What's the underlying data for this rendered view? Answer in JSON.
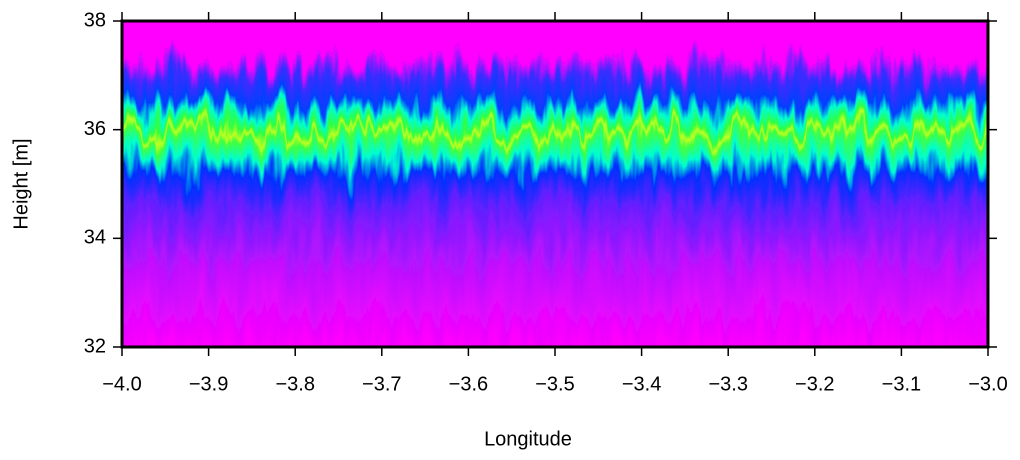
{
  "chart_data": {
    "type": "heatmap",
    "xlabel": "Longitude",
    "ylabel": "Height [m]",
    "xlim": [
      -4.0,
      -3.0
    ],
    "xticks": [
      {
        "value": -4.0,
        "label": "−4.0"
      },
      {
        "value": -3.9,
        "label": "−3.9"
      },
      {
        "value": -3.8,
        "label": "−3.8"
      },
      {
        "value": -3.7,
        "label": "−3.7"
      },
      {
        "value": -3.6,
        "label": "−3.6"
      },
      {
        "value": -3.5,
        "label": "−3.5"
      },
      {
        "value": -3.4,
        "label": "−3.4"
      },
      {
        "value": -3.3,
        "label": "−3.3"
      },
      {
        "value": -3.2,
        "label": "−3.2"
      },
      {
        "value": -3.1,
        "label": "−3.1"
      },
      {
        "value": -3.0,
        "label": "−3.0"
      }
    ],
    "ylim": [
      32,
      38
    ],
    "yticks": [
      32,
      34,
      36,
      38
    ]
  }
}
